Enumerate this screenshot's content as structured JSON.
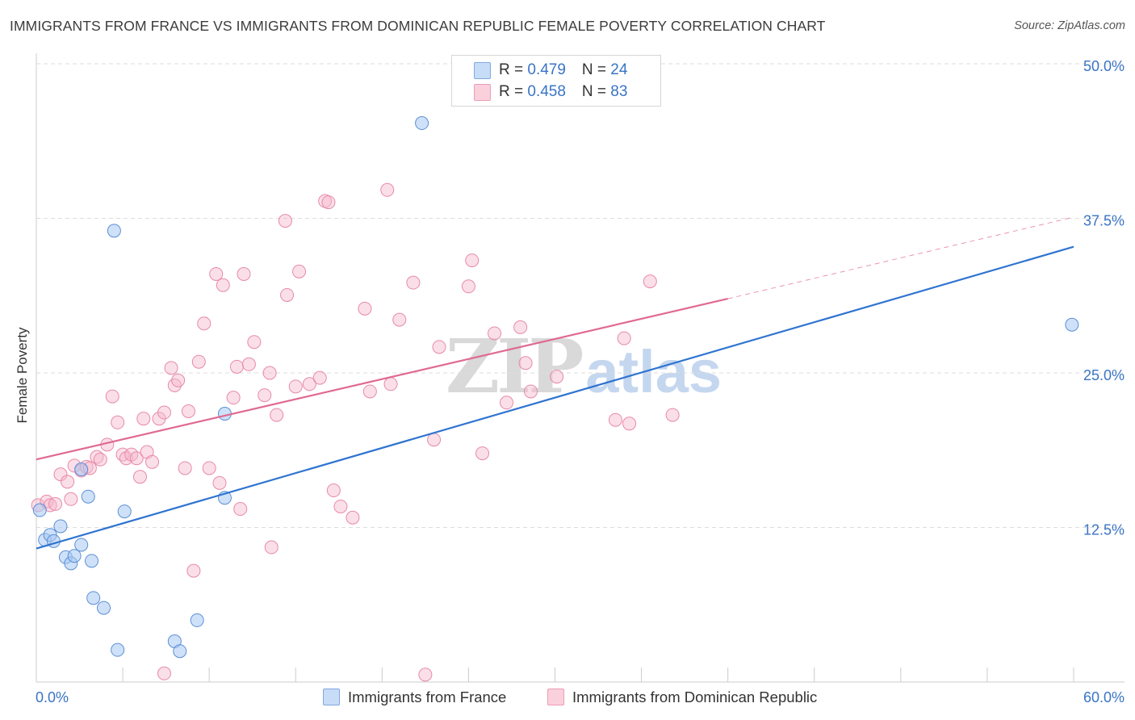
{
  "title": "IMMIGRANTS FROM FRANCE VS IMMIGRANTS FROM DOMINICAN REPUBLIC FEMALE POVERTY CORRELATION CHART",
  "source": "Source: ZipAtlas.com",
  "legend_top": [
    {
      "r_label": "R = ",
      "r_value": "0.479",
      "n_label": "N = ",
      "n_value": "24",
      "color": "#a7c8f2"
    },
    {
      "r_label": "R = ",
      "r_value": "0.458",
      "n_label": "N = ",
      "n_value": "83",
      "color": "#f6b8cc"
    }
  ],
  "legend_bottom": [
    {
      "label": "Immigrants from France",
      "color": "#a7c8f2"
    },
    {
      "label": "Immigrants from Dominican Republic",
      "color": "#f6b8cc"
    }
  ],
  "watermark": {
    "zip": "ZIP",
    "atlas": "atlas"
  },
  "colors": {
    "france_fill": "rgba(167,200,242,0.55)",
    "france_stroke": "#5b8fd6",
    "france_line": "#2f74d0",
    "dr_fill": "rgba(246,184,204,0.45)",
    "dr_stroke": "#e68aa8",
    "dr_line": "#e06a90",
    "axis_label": "#3a74c4",
    "grid": "#dddddd"
  },
  "chart_data": {
    "type": "scatter",
    "title": "IMMIGRANTS FROM FRANCE VS IMMIGRANTS FROM DOMINICAN REPUBLIC FEMALE POVERTY CORRELATION CHART",
    "xlabel": "",
    "ylabel": "Female Poverty",
    "xlim": [
      0,
      60
    ],
    "ylim": [
      0,
      50
    ],
    "x_tick_labels": [
      "0.0%",
      "60.0%"
    ],
    "y_ticks": [
      12.5,
      25.0,
      37.5,
      50.0
    ],
    "y_tick_labels": [
      "12.5%",
      "25.0%",
      "37.5%",
      "50.0%"
    ],
    "grid": true,
    "legend_position": "top-center",
    "series": [
      {
        "name": "Immigrants from France",
        "points": [
          [
            0.2,
            13.9
          ],
          [
            0.5,
            11.5
          ],
          [
            0.8,
            11.9
          ],
          [
            1.0,
            11.4
          ],
          [
            1.4,
            12.6
          ],
          [
            1.7,
            10.1
          ],
          [
            2.0,
            9.6
          ],
          [
            2.2,
            10.2
          ],
          [
            2.6,
            11.1
          ],
          [
            3.2,
            9.8
          ],
          [
            3.3,
            6.8
          ],
          [
            3.9,
            6.0
          ],
          [
            3.0,
            15.0
          ],
          [
            2.6,
            17.2
          ],
          [
            4.5,
            36.5
          ],
          [
            4.7,
            2.6
          ],
          [
            5.1,
            13.8
          ],
          [
            8.0,
            3.3
          ],
          [
            8.3,
            2.5
          ],
          [
            9.3,
            5.0
          ],
          [
            10.9,
            14.9
          ],
          [
            10.9,
            21.7
          ],
          [
            22.3,
            45.2
          ],
          [
            59.9,
            28.9
          ]
        ],
        "trend": {
          "x": [
            0,
            60
          ],
          "y": [
            10.8,
            35.2
          ]
        }
      },
      {
        "name": "Immigrants from Dominican Republic",
        "points": [
          [
            0.1,
            14.3
          ],
          [
            0.6,
            14.6
          ],
          [
            0.8,
            14.3
          ],
          [
            1.1,
            14.4
          ],
          [
            1.4,
            16.8
          ],
          [
            1.8,
            16.2
          ],
          [
            2.0,
            14.8
          ],
          [
            2.2,
            17.5
          ],
          [
            2.6,
            17.1
          ],
          [
            2.9,
            17.4
          ],
          [
            3.1,
            17.3
          ],
          [
            3.5,
            18.2
          ],
          [
            3.7,
            18.0
          ],
          [
            4.1,
            19.2
          ],
          [
            4.4,
            23.1
          ],
          [
            4.7,
            21.0
          ],
          [
            5.0,
            18.4
          ],
          [
            5.2,
            18.1
          ],
          [
            5.5,
            18.4
          ],
          [
            5.8,
            18.1
          ],
          [
            6.0,
            16.6
          ],
          [
            6.2,
            21.3
          ],
          [
            6.4,
            18.6
          ],
          [
            6.7,
            17.8
          ],
          [
            7.1,
            21.3
          ],
          [
            7.4,
            21.8
          ],
          [
            7.8,
            25.4
          ],
          [
            8.0,
            24.0
          ],
          [
            8.2,
            24.4
          ],
          [
            8.6,
            17.3
          ],
          [
            8.8,
            21.9
          ],
          [
            9.1,
            9.0
          ],
          [
            9.4,
            25.9
          ],
          [
            9.7,
            29.0
          ],
          [
            10.0,
            17.3
          ],
          [
            10.4,
            33.0
          ],
          [
            10.6,
            16.1
          ],
          [
            10.8,
            32.1
          ],
          [
            11.4,
            23.0
          ],
          [
            11.6,
            25.5
          ],
          [
            11.8,
            14.0
          ],
          [
            12.0,
            33.0
          ],
          [
            12.3,
            25.7
          ],
          [
            12.6,
            27.5
          ],
          [
            13.2,
            23.2
          ],
          [
            13.5,
            25.0
          ],
          [
            13.9,
            21.6
          ],
          [
            14.4,
            37.3
          ],
          [
            14.5,
            31.3
          ],
          [
            15.0,
            23.9
          ],
          [
            15.2,
            33.2
          ],
          [
            15.8,
            24.1
          ],
          [
            16.4,
            24.6
          ],
          [
            16.7,
            38.9
          ],
          [
            17.2,
            15.5
          ],
          [
            17.6,
            14.2
          ],
          [
            18.3,
            13.3
          ],
          [
            19.0,
            30.2
          ],
          [
            19.3,
            23.5
          ],
          [
            20.3,
            39.8
          ],
          [
            20.5,
            24.1
          ],
          [
            21.0,
            29.3
          ],
          [
            22.5,
            0.6
          ],
          [
            23.0,
            19.6
          ],
          [
            23.3,
            27.1
          ],
          [
            25.0,
            32.0
          ],
          [
            25.2,
            34.1
          ],
          [
            25.8,
            18.5
          ],
          [
            26.5,
            28.2
          ],
          [
            27.2,
            22.6
          ],
          [
            28.0,
            28.7
          ],
          [
            28.3,
            25.8
          ],
          [
            28.6,
            23.5
          ],
          [
            30.1,
            24.7
          ],
          [
            33.5,
            21.2
          ],
          [
            34.0,
            27.8
          ],
          [
            34.3,
            20.9
          ],
          [
            35.5,
            32.4
          ],
          [
            36.8,
            21.6
          ],
          [
            13.6,
            10.9
          ],
          [
            7.4,
            0.7
          ],
          [
            16.9,
            38.8
          ],
          [
            21.8,
            32.3
          ]
        ],
        "trend": {
          "x": [
            0,
            40
          ],
          "y": [
            18.0,
            31.0
          ]
        },
        "trend_extension": {
          "x": [
            40,
            60
          ],
          "y": [
            31.0,
            37.6
          ]
        }
      }
    ]
  }
}
